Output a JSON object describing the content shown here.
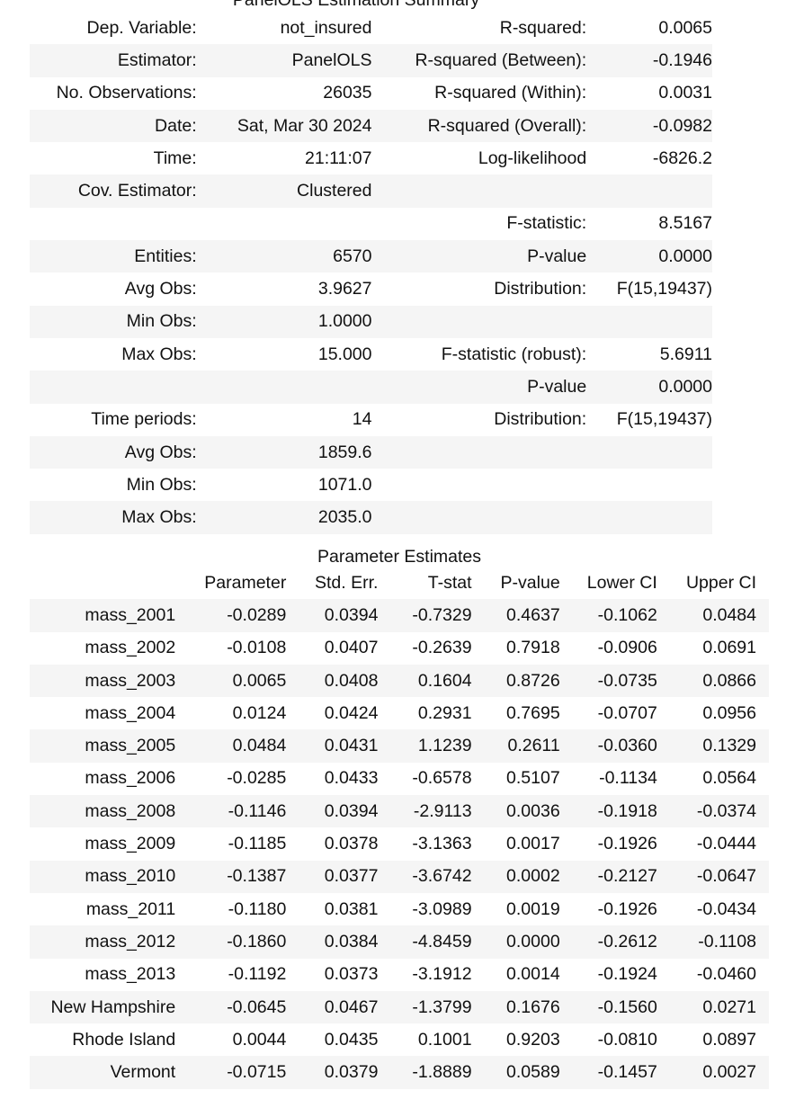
{
  "title": "PanelOLS Estimation Summary",
  "summary": {
    "rows": [
      [
        "Dep. Variable:",
        "not_insured",
        "R-squared:",
        "0.0065"
      ],
      [
        "Estimator:",
        "PanelOLS",
        "R-squared (Between):",
        "-0.1946"
      ],
      [
        "No. Observations:",
        "26035",
        "R-squared (Within):",
        "0.0031"
      ],
      [
        "Date:",
        "Sat, Mar 30 2024",
        "R-squared (Overall):",
        "-0.0982"
      ],
      [
        "Time:",
        "21:11:07",
        "Log-likelihood",
        "-6826.2"
      ],
      [
        "Cov. Estimator:",
        "Clustered",
        "",
        ""
      ],
      [
        "",
        "",
        "F-statistic:",
        "8.5167"
      ],
      [
        "Entities:",
        "6570",
        "P-value",
        "0.0000"
      ],
      [
        "Avg Obs:",
        "3.9627",
        "Distribution:",
        "F(15,19437)"
      ],
      [
        "Min Obs:",
        "1.0000",
        "",
        ""
      ],
      [
        "Max Obs:",
        "15.000",
        "F-statistic (robust):",
        "5.6911"
      ],
      [
        "",
        "",
        "P-value",
        "0.0000"
      ],
      [
        "Time periods:",
        "14",
        "Distribution:",
        "F(15,19437)"
      ],
      [
        "Avg Obs:",
        "1859.6",
        "",
        ""
      ],
      [
        "Min Obs:",
        "1071.0",
        "",
        ""
      ],
      [
        "Max Obs:",
        "2035.0",
        "",
        ""
      ]
    ]
  },
  "estimates": {
    "caption": "Parameter Estimates",
    "headers": [
      "",
      "Parameter",
      "Std. Err.",
      "T-stat",
      "P-value",
      "Lower CI",
      "Upper CI"
    ],
    "rows": [
      [
        "mass_2001",
        "-0.0289",
        "0.0394",
        "-0.7329",
        "0.4637",
        "-0.1062",
        "0.0484"
      ],
      [
        "mass_2002",
        "-0.0108",
        "0.0407",
        "-0.2639",
        "0.7918",
        "-0.0906",
        "0.0691"
      ],
      [
        "mass_2003",
        "0.0065",
        "0.0408",
        "0.1604",
        "0.8726",
        "-0.0735",
        "0.0866"
      ],
      [
        "mass_2004",
        "0.0124",
        "0.0424",
        "0.2931",
        "0.7695",
        "-0.0707",
        "0.0956"
      ],
      [
        "mass_2005",
        "0.0484",
        "0.0431",
        "1.1239",
        "0.2611",
        "-0.0360",
        "0.1329"
      ],
      [
        "mass_2006",
        "-0.0285",
        "0.0433",
        "-0.6578",
        "0.5107",
        "-0.1134",
        "0.0564"
      ],
      [
        "mass_2008",
        "-0.1146",
        "0.0394",
        "-2.9113",
        "0.0036",
        "-0.1918",
        "-0.0374"
      ],
      [
        "mass_2009",
        "-0.1185",
        "0.0378",
        "-3.1363",
        "0.0017",
        "-0.1926",
        "-0.0444"
      ],
      [
        "mass_2010",
        "-0.1387",
        "0.0377",
        "-3.6742",
        "0.0002",
        "-0.2127",
        "-0.0647"
      ],
      [
        "mass_2011",
        "-0.1180",
        "0.0381",
        "-3.0989",
        "0.0019",
        "-0.1926",
        "-0.0434"
      ],
      [
        "mass_2012",
        "-0.1860",
        "0.0384",
        "-4.8459",
        "0.0000",
        "-0.2612",
        "-0.1108"
      ],
      [
        "mass_2013",
        "-0.1192",
        "0.0373",
        "-3.1912",
        "0.0014",
        "-0.1924",
        "-0.0460"
      ],
      [
        "New Hampshire",
        "-0.0645",
        "0.0467",
        "-1.3799",
        "0.1676",
        "-0.1560",
        "0.0271"
      ],
      [
        "Rhode Island",
        "0.0044",
        "0.0435",
        "0.1001",
        "0.9203",
        "-0.0810",
        "0.0897"
      ],
      [
        "Vermont",
        "-0.0715",
        "0.0379",
        "-1.8889",
        "0.0589",
        "-0.1457",
        "0.0027"
      ]
    ]
  }
}
